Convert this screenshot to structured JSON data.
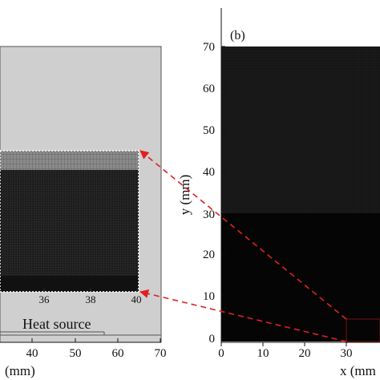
{
  "left_panel": {
    "x_ticks": [
      "40",
      "50",
      "60",
      "70"
    ],
    "x_axis_label": "(mm)",
    "inset_ticks": [
      "36",
      "38",
      "40"
    ],
    "heat_source_label": "Heat source"
  },
  "right_panel": {
    "panel_label": "(b)",
    "y_ticks": [
      "0",
      "10",
      "20",
      "30",
      "40",
      "50",
      "60",
      "70"
    ],
    "x_ticks": [
      "0",
      "10",
      "20",
      "30"
    ],
    "y_axis_label": "y (mm)",
    "x_axis_label": "x (mm"
  },
  "colors": {
    "mesh_dark": "#0b0b0b",
    "mesh_panel": "#1a1a1a",
    "domain_gray": "#cfcfcf",
    "arrow_red": "#e02020"
  }
}
